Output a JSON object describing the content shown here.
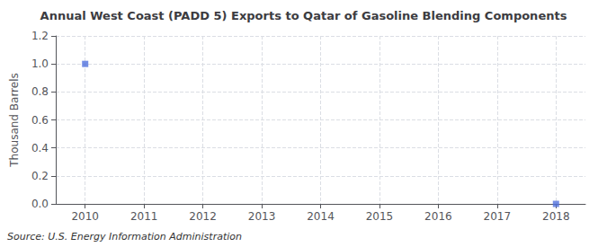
{
  "chart_data": {
    "type": "scatter",
    "title": "Annual West Coast (PADD 5) Exports to Qatar of Gasoline Blending Components",
    "ylabel": "Thousand Barrels",
    "annotation": "Source: U.S. Energy Information Administration",
    "x": [
      2010,
      2018
    ],
    "values": [
      1.0,
      0.0
    ],
    "marker": "square",
    "xlim": [
      2009.5,
      2018.5
    ],
    "xticks": [
      2010,
      2011,
      2012,
      2013,
      2014,
      2015,
      2016,
      2017,
      2018
    ],
    "ylim": [
      0.0,
      1.2
    ],
    "yticks": [
      {
        "value": 0.0,
        "label": "0.0"
      },
      0.2,
      0.4,
      0.6,
      0.8,
      {
        "value": 1.0,
        "label": "1.0"
      },
      1.2
    ],
    "grid": true
  }
}
